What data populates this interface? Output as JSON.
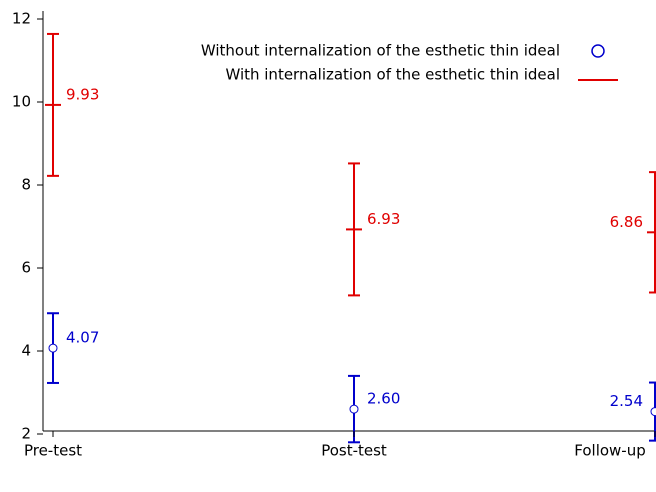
{
  "chart_data": {
    "type": "errorbar",
    "categories": [
      "Pre-test",
      "Post-test",
      "Follow-up"
    ],
    "ylim": [
      2,
      12.2
    ],
    "yticks": [
      2,
      4,
      6,
      8,
      10,
      12
    ],
    "legend": "top-right",
    "series": [
      {
        "name": "Without internalization of the esthetic thin ideal",
        "color": "#0000cc",
        "marker": "circle",
        "values": [
          4.07,
          2.6,
          2.54
        ],
        "value_labels": [
          "4.07",
          "2.60",
          "2.54"
        ],
        "errors": [
          0.84,
          0.8,
          0.7
        ]
      },
      {
        "name": "With internalization of the esthetic thin ideal",
        "color": "#e00000",
        "marker": "line",
        "values": [
          9.93,
          6.93,
          6.86
        ],
        "value_labels": [
          "9.93",
          "6.93",
          "6.86"
        ],
        "errors": [
          1.71,
          1.59,
          1.45
        ]
      }
    ]
  }
}
